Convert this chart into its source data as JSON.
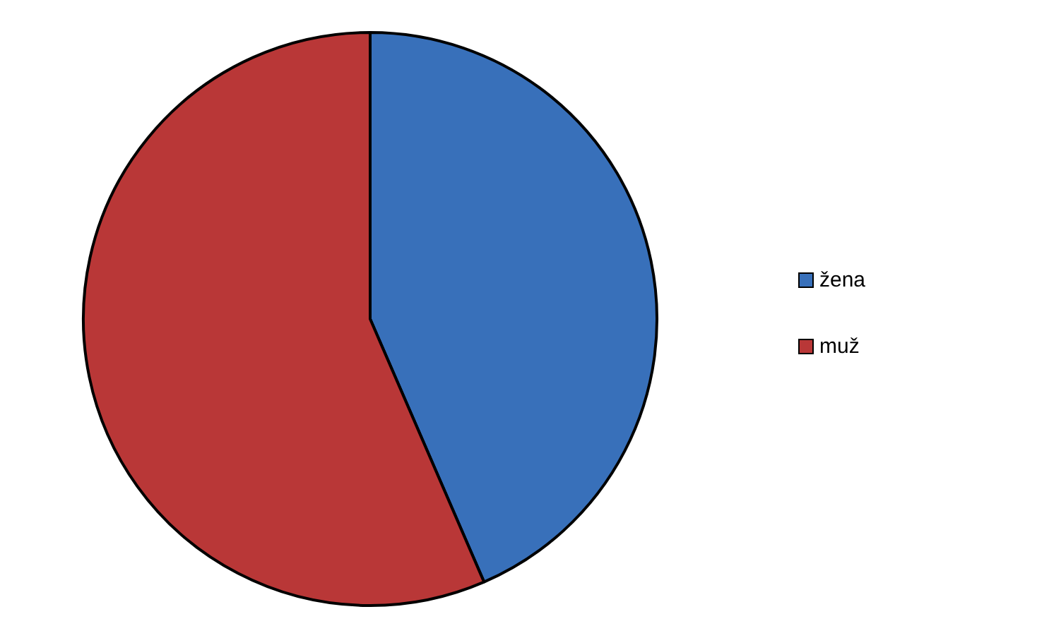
{
  "chart_data": {
    "type": "pie",
    "categories": [
      "žena",
      "muž"
    ],
    "values": [
      43.5,
      56.5
    ],
    "colors": [
      "#3870ba",
      "#b93737"
    ],
    "legend": "right"
  }
}
